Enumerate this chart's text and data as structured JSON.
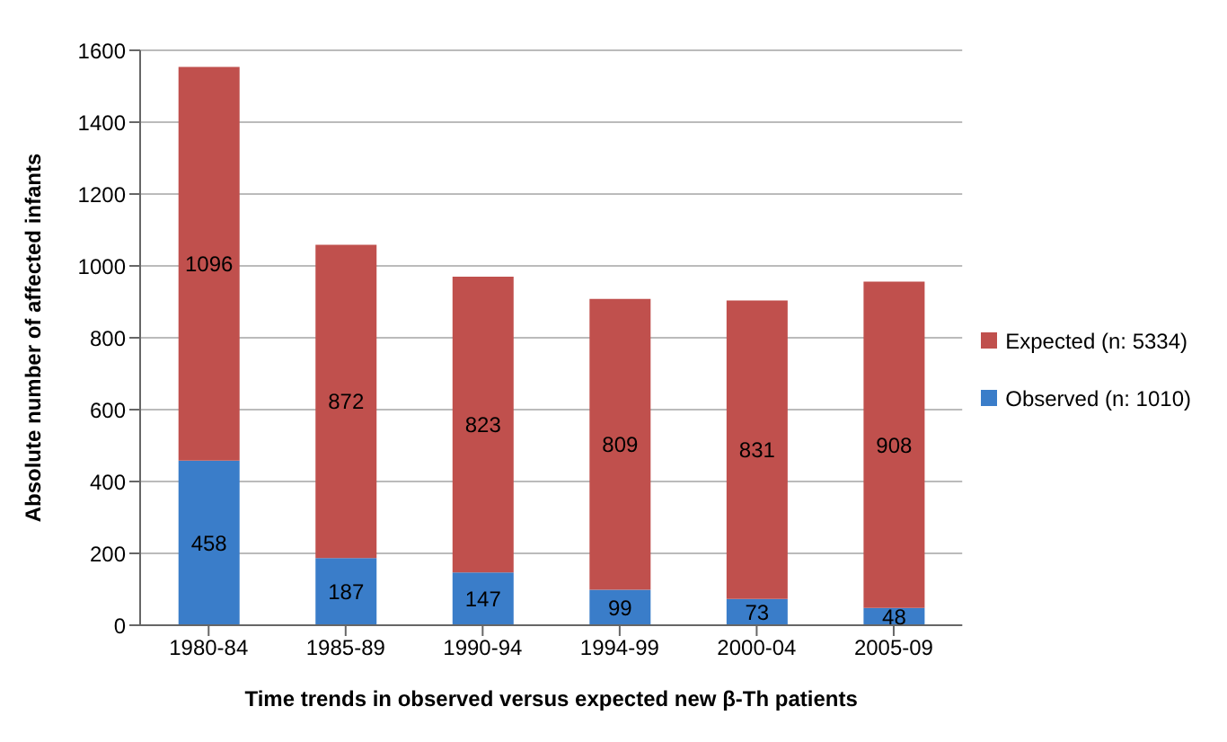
{
  "chart_data": {
    "type": "bar",
    "stacked": true,
    "xlabel": "Time trends in observed versus expected new β-Th patients",
    "ylabel": "Absolute number of affected infants",
    "categories": [
      "1980-84",
      "1985-89",
      "1990-94",
      "1994-99",
      "2000-04",
      "2005-09"
    ],
    "series": [
      {
        "name": "Observed (n: 1010)",
        "color": "#3a7dc9",
        "values": [
          458,
          187,
          147,
          99,
          73,
          48
        ]
      },
      {
        "name": "Expected (n: 5334)",
        "color": "#c0504d",
        "values": [
          1096,
          872,
          823,
          809,
          831,
          908
        ]
      }
    ],
    "ylim": [
      0,
      1600
    ],
    "yticks": [
      0,
      200,
      400,
      600,
      800,
      1000,
      1200,
      1400,
      1600
    ],
    "grid": "y",
    "legend": "right",
    "data_labels": true
  }
}
